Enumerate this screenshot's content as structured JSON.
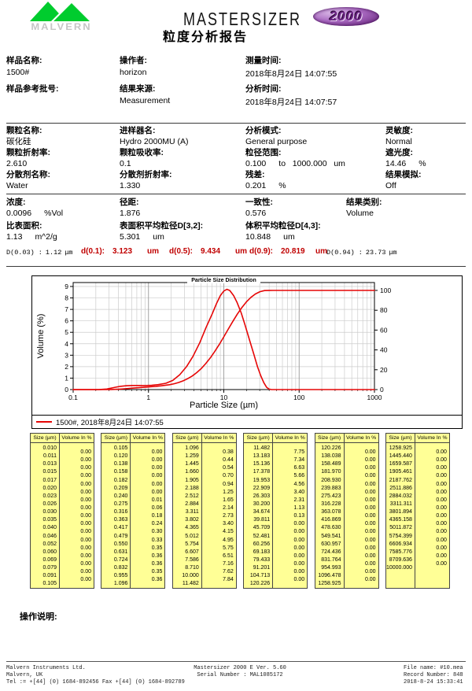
{
  "header": {
    "brand": "MALVERN",
    "product": "MASTERSIZER",
    "badge": "2000",
    "report_title": "粒度分析报告"
  },
  "info1": {
    "c1": {
      "l1": "样品名称:",
      "v1": "1500#",
      "l2": "样品参考批号:",
      "v2": ""
    },
    "c2": {
      "l1": "操作者:",
      "v1": "horizon",
      "l2": "结果来源:",
      "v2": "Measurement"
    },
    "c3": {
      "l1": "测量时间:",
      "v1": "2018年8月24日 14:07:55",
      "l2": "分析时间:",
      "v2": "2018年8月24日 14:07:57"
    }
  },
  "info2": {
    "items": [
      {
        "label": "颗粒名称:",
        "value": "碳化硅",
        "unit": ""
      },
      {
        "label": "进样器名:",
        "value": "Hydro 2000MU (A)",
        "unit": ""
      },
      {
        "label": "分析模式:",
        "value": "General purpose",
        "unit": ""
      },
      {
        "label": "灵敏度:",
        "value": "Normal",
        "unit": ""
      },
      {
        "label": "颗粒折射率:",
        "value": "2.610",
        "unit": ""
      },
      {
        "label": "颗粒吸收率:",
        "value": "0.1",
        "unit": ""
      },
      {
        "label": "粒径范围:",
        "value": "0.100",
        "unit": "to   1000.000   um"
      },
      {
        "label": "遮光度:",
        "value": "14.46",
        "unit": "%"
      },
      {
        "label": "分散剂名称:",
        "value": "Water",
        "unit": ""
      },
      {
        "label": "分散剂折射率:",
        "value": "1.330",
        "unit": ""
      },
      {
        "label": "残差:",
        "value": "0.201",
        "unit": "%"
      },
      {
        "label": "结果模拟:",
        "value": "Off",
        "unit": ""
      }
    ]
  },
  "info3": {
    "r1": [
      {
        "label": "浓度:",
        "value": "0.0096",
        "unit": "%Vol"
      },
      {
        "label": "径距:",
        "value": "1.876",
        "unit": ""
      },
      {
        "label": "一致性:",
        "value": "0.576",
        "unit": ""
      },
      {
        "label": "结果类别:",
        "value": "Volume",
        "unit": ""
      }
    ],
    "r2": [
      {
        "label": "比表面积:",
        "value": "1.13",
        "unit": "m^2/g"
      },
      {
        "label": "表面积平均粒径D[3,2]:",
        "value": "5.301",
        "unit": "um"
      },
      {
        "label": "体积平均粒径D[4,3]:",
        "value": "10.848",
        "unit": "um"
      }
    ]
  },
  "d_row": [
    {
      "label": "D(0.03) :",
      "value": "1.12",
      "unit": "μm"
    },
    {
      "label": "d(0.1):",
      "value": "3.123",
      "unit": "um"
    },
    {
      "label": "d(0.5):",
      "value": "9.434",
      "unit": "um"
    },
    {
      "label": "d(0.9):",
      "value": "20.819",
      "unit": "um"
    },
    {
      "label": "D(0.94) :",
      "value": "23.73",
      "unit": "μm"
    }
  ],
  "chart_data": {
    "type": "line",
    "title": "Particle Size Distribution",
    "xlabel": "Particle Size (µm)",
    "ylabel": "Volume (%)",
    "x_scale": "log",
    "xlim": [
      0.1,
      1000
    ],
    "ylim_left": [
      0,
      9
    ],
    "ylim_right": [
      0,
      100
    ],
    "x_ticks": [
      0.1,
      1,
      10,
      100,
      1000
    ],
    "y_ticks_left": [
      0,
      1,
      2,
      3,
      4,
      5,
      6,
      7,
      8,
      9
    ],
    "y_ticks_right": [
      0,
      20,
      40,
      60,
      80,
      100
    ],
    "grid": true,
    "legend": "1500#, 2018年8月24日 14:07:55",
    "legend_position": "bottom",
    "line_color": "#e60606",
    "series": [
      {
        "name": "volume-frequency",
        "axis": "left",
        "color": "#e60606",
        "points": [
          [
            0.1,
            0
          ],
          [
            0.22,
            0
          ],
          [
            0.28,
            0.05
          ],
          [
            0.35,
            0.18
          ],
          [
            0.42,
            0.28
          ],
          [
            0.5,
            0.33
          ],
          [
            0.6,
            0.36
          ],
          [
            0.75,
            0.36
          ],
          [
            0.9,
            0.35
          ],
          [
            1.1,
            0.37
          ],
          [
            1.35,
            0.43
          ],
          [
            1.7,
            0.55
          ],
          [
            2.1,
            0.8
          ],
          [
            2.6,
            1.3
          ],
          [
            3.2,
            2.0
          ],
          [
            3.9,
            2.9
          ],
          [
            4.8,
            4.1
          ],
          [
            5.8,
            5.4
          ],
          [
            7,
            6.6
          ],
          [
            8,
            7.5
          ],
          [
            9,
            8.2
          ],
          [
            10,
            8.6
          ],
          [
            11,
            8.75
          ],
          [
            12,
            8.65
          ],
          [
            13.5,
            8.2
          ],
          [
            15,
            7.6
          ],
          [
            17,
            6.7
          ],
          [
            19,
            5.7
          ],
          [
            22,
            4.3
          ],
          [
            25,
            3.1
          ],
          [
            28,
            2.0
          ],
          [
            31,
            1.2
          ],
          [
            34,
            0.6
          ],
          [
            37,
            0.2
          ],
          [
            40,
            0.04
          ],
          [
            43,
            0
          ],
          [
            1000,
            0
          ]
        ]
      },
      {
        "name": "cumulative-undersize",
        "axis": "right",
        "color": "#e60606",
        "points": [
          [
            0.1,
            0
          ],
          [
            0.24,
            0
          ],
          [
            0.275,
            0.01
          ],
          [
            0.316,
            0.07
          ],
          [
            0.363,
            0.25
          ],
          [
            0.417,
            0.49
          ],
          [
            0.479,
            0.79
          ],
          [
            0.55,
            1.12
          ],
          [
            0.631,
            1.47
          ],
          [
            0.724,
            1.83
          ],
          [
            0.832,
            2.19
          ],
          [
            0.955,
            2.54
          ],
          [
            1.096,
            2.9
          ],
          [
            1.259,
            3.28
          ],
          [
            1.445,
            3.72
          ],
          [
            1.66,
            4.26
          ],
          [
            1.905,
            4.96
          ],
          [
            2.188,
            5.9
          ],
          [
            2.512,
            7.15
          ],
          [
            2.884,
            8.8
          ],
          [
            3.311,
            10.94
          ],
          [
            3.802,
            13.67
          ],
          [
            4.365,
            17.07
          ],
          [
            5.012,
            21.22
          ],
          [
            5.754,
            26.17
          ],
          [
            6.607,
            31.92
          ],
          [
            7.586,
            38.43
          ],
          [
            8.71,
            45.59
          ],
          [
            10,
            53.21
          ],
          [
            11.482,
            61.05
          ],
          [
            13.183,
            68.8
          ],
          [
            15.136,
            76.14
          ],
          [
            17.378,
            82.77
          ],
          [
            19.953,
            88.43
          ],
          [
            22.909,
            92.99
          ],
          [
            26.303,
            96.39
          ],
          [
            30.2,
            98.7
          ],
          [
            34.674,
            99.83
          ],
          [
            39.811,
            99.96
          ],
          [
            45,
            100
          ],
          [
            1000,
            100
          ]
        ]
      }
    ]
  },
  "table": {
    "size_header": "Size (µm)",
    "volume_header": "Volume In %",
    "columns": [
      {
        "sizes": [
          "0.010",
          "0.011",
          "0.013",
          "0.015",
          "0.017",
          "0.020",
          "0.023",
          "0.026",
          "0.030",
          "0.035",
          "0.040",
          "0.046",
          "0.052",
          "0.060",
          "0.069",
          "0.079",
          "0.091",
          "0.105"
        ],
        "volumes": [
          "0.00",
          "0.00",
          "0.00",
          "0.00",
          "0.00",
          "0.00",
          "0.00",
          "0.00",
          "0.00",
          "0.00",
          "0.00",
          "0.00",
          "0.00",
          "0.00",
          "0.00",
          "0.00",
          "0.00"
        ]
      },
      {
        "sizes": [
          "0.105",
          "0.120",
          "0.138",
          "0.158",
          "0.182",
          "0.209",
          "0.240",
          "0.275",
          "0.316",
          "0.363",
          "0.417",
          "0.479",
          "0.550",
          "0.631",
          "0.724",
          "0.832",
          "0.955",
          "1.096"
        ],
        "volumes": [
          "0.00",
          "0.00",
          "0.00",
          "0.00",
          "0.00",
          "0.00",
          "0.01",
          "0.06",
          "0.18",
          "0.24",
          "0.30",
          "0.33",
          "0.35",
          "0.36",
          "0.36",
          "0.35",
          "0.36"
        ]
      },
      {
        "sizes": [
          "1.096",
          "1.259",
          "1.445",
          "1.660",
          "1.905",
          "2.188",
          "2.512",
          "2.884",
          "3.311",
          "3.802",
          "4.365",
          "5.012",
          "5.754",
          "6.607",
          "7.586",
          "8.710",
          "10.000",
          "11.482"
        ],
        "volumes": [
          "0.38",
          "0.44",
          "0.54",
          "0.70",
          "0.94",
          "1.25",
          "1.65",
          "2.14",
          "2.73",
          "3.40",
          "4.15",
          "4.95",
          "5.75",
          "6.51",
          "7.16",
          "7.62",
          "7.84"
        ]
      },
      {
        "sizes": [
          "11.482",
          "13.183",
          "15.136",
          "17.378",
          "19.953",
          "22.909",
          "26.303",
          "30.200",
          "34.674",
          "39.811",
          "45.709",
          "52.481",
          "60.256",
          "69.183",
          "79.433",
          "91.201",
          "104.713",
          "120.226"
        ],
        "volumes": [
          "7.75",
          "7.34",
          "6.63",
          "5.66",
          "4.56",
          "3.40",
          "2.31",
          "1.13",
          "0.13",
          "0.00",
          "0.00",
          "0.00",
          "0.00",
          "0.00",
          "0.00",
          "0.00",
          "0.00"
        ]
      },
      {
        "sizes": [
          "120.226",
          "138.038",
          "158.489",
          "181.970",
          "208.930",
          "239.883",
          "275.423",
          "316.228",
          "363.078",
          "416.869",
          "478.630",
          "549.541",
          "630.957",
          "724.436",
          "831.764",
          "954.993",
          "1096.478",
          "1258.925"
        ],
        "volumes": [
          "0.00",
          "0.00",
          "0.00",
          "0.00",
          "0.00",
          "0.00",
          "0.00",
          "0.00",
          "0.00",
          "0.00",
          "0.00",
          "0.00",
          "0.00",
          "0.00",
          "0.00",
          "0.00",
          "0.00"
        ]
      },
      {
        "sizes": [
          "1258.925",
          "1445.440",
          "1659.587",
          "1905.461",
          "2187.762",
          "2511.886",
          "2884.032",
          "3311.311",
          "3801.894",
          "4365.158",
          "5011.872",
          "5754.399",
          "6606.934",
          "7585.776",
          "8709.636",
          "10000.000"
        ],
        "volumes": [
          "0.00",
          "0.00",
          "0.00",
          "0.00",
          "0.00",
          "0.00",
          "0.00",
          "0.00",
          "0.00",
          "0.00",
          "0.00",
          "0.00",
          "0.00",
          "0.00",
          "0.00"
        ]
      }
    ]
  },
  "notes": {
    "label": "操作说明:"
  },
  "footer": {
    "company_line1": "Malvern Instruments Ltd.",
    "company_line2": "Malvern, UK",
    "company_line3": "Tel := +[44] (0) 1684-892456 Fax +[44] (0) 1684-892789",
    "product_line1": "Mastersizer 2000 E Ver. 5.60",
    "product_line2": "Serial Number : MAL1085172",
    "file_line1": "File name: #10.mea",
    "file_line2": "Record Number: 848",
    "file_line3": "2018-8-24 15:33:41"
  }
}
